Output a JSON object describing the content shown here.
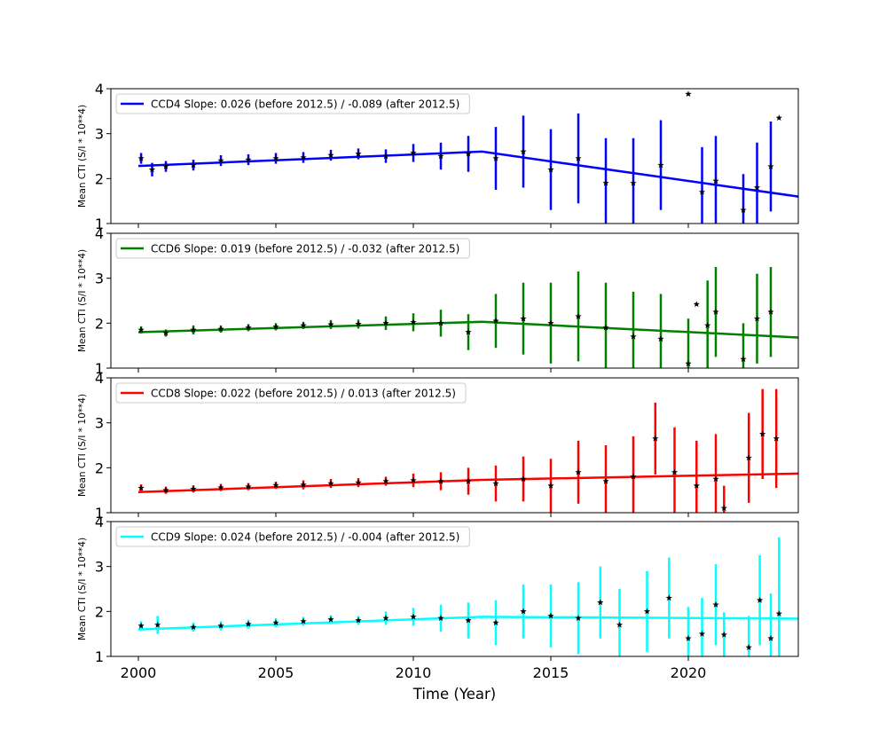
{
  "chart_data": {
    "type": "scatter",
    "xlabel": "Time (Year)",
    "xlim": [
      1999,
      2024
    ],
    "xticks": [
      2000,
      2005,
      2010,
      2015,
      2020
    ],
    "ylim": [
      1,
      4
    ],
    "yticks": [
      1,
      2,
      3,
      4
    ],
    "legend_position": "top-left",
    "marker": "black-star",
    "panels": [
      {
        "name": "CCD4",
        "legend": "CCD4 Slope: 0.026 (before 2012.5) / -0.089 (after 2012.5)",
        "ylabel": "Mean CTI (S/I * 10**4)",
        "color": "#0000ff",
        "fit": {
          "x_start": 2000.0,
          "y_start": 2.28,
          "x_break": 2012.5,
          "y_break": 2.6,
          "x_end": 2024.0,
          "y_end": 1.6
        },
        "points": [
          {
            "x": 2000.1,
            "y": 2.45,
            "err": 0.12
          },
          {
            "x": 2000.5,
            "y": 2.2,
            "err": 0.15
          },
          {
            "x": 2001.0,
            "y": 2.27,
            "err": 0.12
          },
          {
            "x": 2002.0,
            "y": 2.3,
            "err": 0.12
          },
          {
            "x": 2003.0,
            "y": 2.4,
            "err": 0.12
          },
          {
            "x": 2004.0,
            "y": 2.42,
            "err": 0.12
          },
          {
            "x": 2005.0,
            "y": 2.45,
            "err": 0.12
          },
          {
            "x": 2006.0,
            "y": 2.47,
            "err": 0.12
          },
          {
            "x": 2007.0,
            "y": 2.52,
            "err": 0.12
          },
          {
            "x": 2008.0,
            "y": 2.55,
            "err": 0.12
          },
          {
            "x": 2009.0,
            "y": 2.5,
            "err": 0.15
          },
          {
            "x": 2010.0,
            "y": 2.57,
            "err": 0.2
          },
          {
            "x": 2011.0,
            "y": 2.5,
            "err": 0.3
          },
          {
            "x": 2012.0,
            "y": 2.55,
            "err": 0.4
          },
          {
            "x": 2013.0,
            "y": 2.45,
            "err": 0.7
          },
          {
            "x": 2014.0,
            "y": 2.6,
            "err": 0.8
          },
          {
            "x": 2015.0,
            "y": 2.2,
            "err": 0.9
          },
          {
            "x": 2016.0,
            "y": 2.45,
            "err": 1.0
          },
          {
            "x": 2017.0,
            "y": 1.9,
            "err": 1.0
          },
          {
            "x": 2018.0,
            "y": 1.9,
            "err": 1.0
          },
          {
            "x": 2019.0,
            "y": 2.3,
            "err": 1.0
          },
          {
            "x": 2020.0,
            "y": 3.88,
            "err": 0.0
          },
          {
            "x": 2020.5,
            "y": 1.7,
            "err": 1.0
          },
          {
            "x": 2021.0,
            "y": 1.95,
            "err": 1.0
          },
          {
            "x": 2022.0,
            "y": 1.3,
            "err": 0.8
          },
          {
            "x": 2022.5,
            "y": 1.8,
            "err": 1.0
          },
          {
            "x": 2023.0,
            "y": 2.27,
            "err": 1.0
          },
          {
            "x": 2023.3,
            "y": 3.35,
            "err": 0.0
          }
        ]
      },
      {
        "name": "CCD6",
        "legend": "CCD6 Slope: 0.019 (before 2012.5) / -0.032 (after 2012.5)",
        "ylabel": "Mean CTI (S/I * 10**4)",
        "color": "#008000",
        "fit": {
          "x_start": 2000.0,
          "y_start": 1.8,
          "x_break": 2012.5,
          "y_break": 2.03,
          "x_end": 2024.0,
          "y_end": 1.68
        },
        "points": [
          {
            "x": 2000.1,
            "y": 1.85,
            "err": 0.08
          },
          {
            "x": 2001.0,
            "y": 1.78,
            "err": 0.08
          },
          {
            "x": 2002.0,
            "y": 1.85,
            "err": 0.1
          },
          {
            "x": 2003.0,
            "y": 1.87,
            "err": 0.08
          },
          {
            "x": 2004.0,
            "y": 1.9,
            "err": 0.08
          },
          {
            "x": 2005.0,
            "y": 1.92,
            "err": 0.08
          },
          {
            "x": 2006.0,
            "y": 1.95,
            "err": 0.08
          },
          {
            "x": 2007.0,
            "y": 1.97,
            "err": 0.1
          },
          {
            "x": 2008.0,
            "y": 1.98,
            "err": 0.1
          },
          {
            "x": 2009.0,
            "y": 2.0,
            "err": 0.15
          },
          {
            "x": 2010.0,
            "y": 2.02,
            "err": 0.2
          },
          {
            "x": 2011.0,
            "y": 2.0,
            "err": 0.3
          },
          {
            "x": 2012.0,
            "y": 1.8,
            "err": 0.4
          },
          {
            "x": 2013.0,
            "y": 2.05,
            "err": 0.6
          },
          {
            "x": 2014.0,
            "y": 2.1,
            "err": 0.8
          },
          {
            "x": 2015.0,
            "y": 2.0,
            "err": 0.9
          },
          {
            "x": 2016.0,
            "y": 2.15,
            "err": 1.0
          },
          {
            "x": 2017.0,
            "y": 1.9,
            "err": 1.0
          },
          {
            "x": 2018.0,
            "y": 1.7,
            "err": 1.0
          },
          {
            "x": 2019.0,
            "y": 1.65,
            "err": 1.0
          },
          {
            "x": 2020.0,
            "y": 1.1,
            "err": 1.0
          },
          {
            "x": 2020.3,
            "y": 2.42,
            "err": 0.0
          },
          {
            "x": 2020.7,
            "y": 1.95,
            "err": 1.0
          },
          {
            "x": 2021.0,
            "y": 2.25,
            "err": 1.0
          },
          {
            "x": 2022.0,
            "y": 1.2,
            "err": 0.8
          },
          {
            "x": 2022.5,
            "y": 2.1,
            "err": 1.0
          },
          {
            "x": 2023.0,
            "y": 2.25,
            "err": 1.0
          }
        ]
      },
      {
        "name": "CCD8",
        "legend": "CCD8 Slope: 0.022 (before 2012.5) / 0.013 (after 2012.5)",
        "ylabel": "Mean CTI (S/I * 10**4)",
        "color": "#ff0000",
        "fit": {
          "x_start": 2000.0,
          "y_start": 1.46,
          "x_break": 2012.5,
          "y_break": 1.73,
          "x_end": 2024.0,
          "y_end": 1.87
        },
        "points": [
          {
            "x": 2000.1,
            "y": 1.55,
            "err": 0.08
          },
          {
            "x": 2001.0,
            "y": 1.5,
            "err": 0.08
          },
          {
            "x": 2002.0,
            "y": 1.53,
            "err": 0.08
          },
          {
            "x": 2003.0,
            "y": 1.56,
            "err": 0.08
          },
          {
            "x": 2004.0,
            "y": 1.58,
            "err": 0.08
          },
          {
            "x": 2005.0,
            "y": 1.61,
            "err": 0.08
          },
          {
            "x": 2006.0,
            "y": 1.62,
            "err": 0.1
          },
          {
            "x": 2007.0,
            "y": 1.65,
            "err": 0.1
          },
          {
            "x": 2008.0,
            "y": 1.67,
            "err": 0.1
          },
          {
            "x": 2009.0,
            "y": 1.7,
            "err": 0.1
          },
          {
            "x": 2010.0,
            "y": 1.72,
            "err": 0.15
          },
          {
            "x": 2011.0,
            "y": 1.7,
            "err": 0.2
          },
          {
            "x": 2012.0,
            "y": 1.7,
            "err": 0.3
          },
          {
            "x": 2013.0,
            "y": 1.65,
            "err": 0.4
          },
          {
            "x": 2014.0,
            "y": 1.75,
            "err": 0.5
          },
          {
            "x": 2015.0,
            "y": 1.6,
            "err": 0.6
          },
          {
            "x": 2016.0,
            "y": 1.9,
            "err": 0.7
          },
          {
            "x": 2017.0,
            "y": 1.7,
            "err": 0.8
          },
          {
            "x": 2018.0,
            "y": 1.8,
            "err": 0.9
          },
          {
            "x": 2018.8,
            "y": 2.65,
            "err": 0.8
          },
          {
            "x": 2019.5,
            "y": 1.9,
            "err": 1.0
          },
          {
            "x": 2020.3,
            "y": 1.6,
            "err": 1.0
          },
          {
            "x": 2021.0,
            "y": 1.75,
            "err": 1.0
          },
          {
            "x": 2021.3,
            "y": 1.1,
            "err": 0.5
          },
          {
            "x": 2022.2,
            "y": 2.22,
            "err": 1.0
          },
          {
            "x": 2022.7,
            "y": 2.75,
            "err": 1.0
          },
          {
            "x": 2023.2,
            "y": 2.65,
            "err": 1.1
          }
        ]
      },
      {
        "name": "CCD9",
        "legend": "CCD9 Slope: 0.024 (before 2012.5) / -0.004 (after 2012.5)",
        "ylabel": "Mean CTI (S/I * 10**4)",
        "color": "#00ffff",
        "fit": {
          "x_start": 2000.0,
          "y_start": 1.6,
          "x_break": 2012.5,
          "y_break": 1.88,
          "x_end": 2024.0,
          "y_end": 1.84
        },
        "points": [
          {
            "x": 2000.1,
            "y": 1.68,
            "err": 0.1
          },
          {
            "x": 2000.7,
            "y": 1.7,
            "err": 0.2
          },
          {
            "x": 2002.0,
            "y": 1.65,
            "err": 0.1
          },
          {
            "x": 2003.0,
            "y": 1.68,
            "err": 0.1
          },
          {
            "x": 2004.0,
            "y": 1.72,
            "err": 0.1
          },
          {
            "x": 2005.0,
            "y": 1.75,
            "err": 0.1
          },
          {
            "x": 2006.0,
            "y": 1.78,
            "err": 0.1
          },
          {
            "x": 2007.0,
            "y": 1.82,
            "err": 0.1
          },
          {
            "x": 2008.0,
            "y": 1.8,
            "err": 0.1
          },
          {
            "x": 2009.0,
            "y": 1.85,
            "err": 0.15
          },
          {
            "x": 2010.0,
            "y": 1.88,
            "err": 0.2
          },
          {
            "x": 2011.0,
            "y": 1.85,
            "err": 0.3
          },
          {
            "x": 2012.0,
            "y": 1.8,
            "err": 0.4
          },
          {
            "x": 2013.0,
            "y": 1.75,
            "err": 0.5
          },
          {
            "x": 2014.0,
            "y": 2.0,
            "err": 0.6
          },
          {
            "x": 2015.0,
            "y": 1.9,
            "err": 0.7
          },
          {
            "x": 2016.0,
            "y": 1.85,
            "err": 0.8
          },
          {
            "x": 2016.8,
            "y": 2.2,
            "err": 0.8
          },
          {
            "x": 2017.5,
            "y": 1.7,
            "err": 0.8
          },
          {
            "x": 2018.5,
            "y": 2.0,
            "err": 0.9
          },
          {
            "x": 2019.3,
            "y": 2.3,
            "err": 0.9
          },
          {
            "x": 2020.0,
            "y": 1.4,
            "err": 0.7
          },
          {
            "x": 2020.5,
            "y": 1.5,
            "err": 0.8
          },
          {
            "x": 2021.0,
            "y": 2.15,
            "err": 0.9
          },
          {
            "x": 2021.3,
            "y": 1.48,
            "err": 0.5
          },
          {
            "x": 2022.2,
            "y": 1.2,
            "err": 0.7
          },
          {
            "x": 2022.6,
            "y": 2.25,
            "err": 1.0
          },
          {
            "x": 2023.0,
            "y": 1.4,
            "err": 1.0
          },
          {
            "x": 2023.3,
            "y": 1.95,
            "err": 1.7
          }
        ]
      }
    ]
  }
}
